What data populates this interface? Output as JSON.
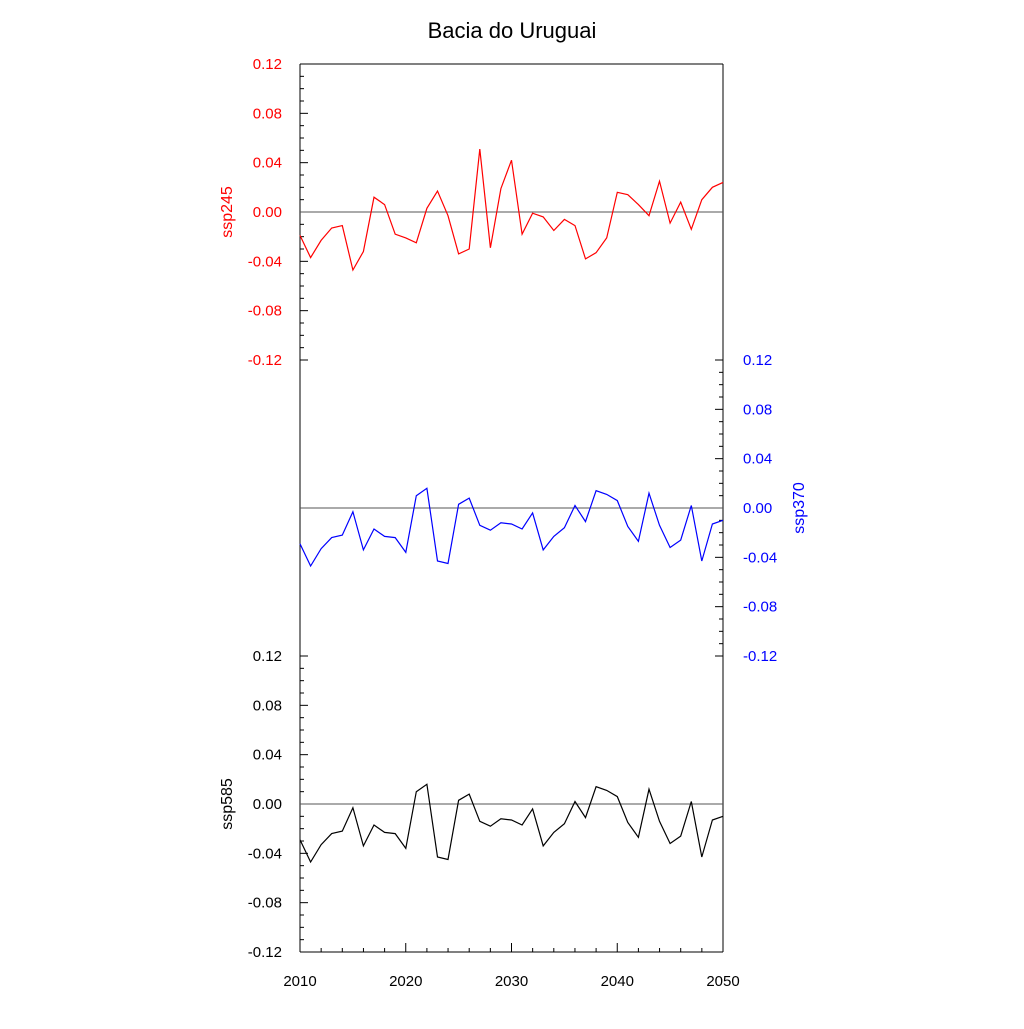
{
  "chart_data": {
    "type": "line",
    "title": "Bacia do Uruguai",
    "xlabel": "",
    "xlim": [
      2010,
      2050
    ],
    "x_ticks": [
      "2010",
      "2020",
      "2030",
      "2040",
      "2050"
    ],
    "x": [
      2010,
      2011,
      2012,
      2013,
      2014,
      2015,
      2016,
      2017,
      2018,
      2019,
      2020,
      2021,
      2022,
      2023,
      2024,
      2025,
      2026,
      2027,
      2028,
      2029,
      2030,
      2031,
      2032,
      2033,
      2034,
      2035,
      2036,
      2037,
      2038,
      2039,
      2040,
      2041,
      2042,
      2043,
      2044,
      2045,
      2046,
      2047,
      2048,
      2049,
      2050
    ],
    "reference_line": 0,
    "series": [
      {
        "name": "ssp245",
        "color": "#ff0000",
        "ylim": [
          -0.12,
          0.12
        ],
        "y_ticks": [
          "0.12",
          "0.08",
          "0.04",
          "0.00",
          "-0.04",
          "-0.08",
          "-0.12"
        ],
        "axis_side": "left",
        "values": [
          -0.019,
          -0.037,
          -0.023,
          -0.013,
          -0.011,
          -0.047,
          -0.032,
          0.012,
          0.006,
          -0.018,
          -0.021,
          -0.025,
          0.003,
          0.017,
          -0.003,
          -0.034,
          -0.03,
          0.051,
          -0.029,
          0.019,
          0.042,
          -0.018,
          -0.001,
          -0.004,
          -0.015,
          -0.006,
          -0.011,
          -0.038,
          -0.033,
          -0.021,
          0.016,
          0.014,
          0.006,
          -0.003,
          0.025,
          -0.009,
          0.008,
          -0.014,
          0.01,
          0.02,
          0.024
        ]
      },
      {
        "name": "ssp370",
        "color": "#0000ff",
        "ylim": [
          -0.12,
          0.12
        ],
        "y_ticks": [
          "0.12",
          "0.08",
          "0.04",
          "0.00",
          "-0.04",
          "-0.08",
          "-0.12"
        ],
        "axis_side": "right",
        "values": [
          -0.029,
          -0.047,
          -0.033,
          -0.024,
          -0.022,
          -0.003,
          -0.034,
          -0.017,
          -0.023,
          -0.024,
          -0.036,
          0.01,
          0.016,
          -0.043,
          -0.045,
          0.003,
          0.008,
          -0.014,
          -0.018,
          -0.012,
          -0.013,
          -0.017,
          -0.004,
          -0.034,
          -0.023,
          -0.016,
          0.002,
          -0.011,
          0.014,
          0.011,
          0.006,
          -0.015,
          -0.027,
          0.012,
          -0.014,
          -0.032,
          -0.026,
          0.002,
          -0.043,
          -0.013,
          -0.01
        ]
      },
      {
        "name": "ssp585",
        "color": "#000000",
        "ylim": [
          -0.12,
          0.12
        ],
        "y_ticks": [
          "0.12",
          "0.08",
          "0.04",
          "0.00",
          "-0.04",
          "-0.08",
          "-0.12"
        ],
        "axis_side": "left",
        "values": [
          -0.029,
          -0.047,
          -0.033,
          -0.024,
          -0.022,
          -0.003,
          -0.034,
          -0.017,
          -0.023,
          -0.024,
          -0.036,
          0.01,
          0.016,
          -0.043,
          -0.045,
          0.003,
          0.008,
          -0.014,
          -0.018,
          -0.012,
          -0.013,
          -0.017,
          -0.004,
          -0.034,
          -0.023,
          -0.016,
          0.002,
          -0.011,
          0.014,
          0.011,
          0.006,
          -0.015,
          -0.027,
          0.012,
          -0.014,
          -0.032,
          -0.026,
          0.002,
          -0.043,
          -0.013,
          -0.01
        ]
      }
    ]
  }
}
